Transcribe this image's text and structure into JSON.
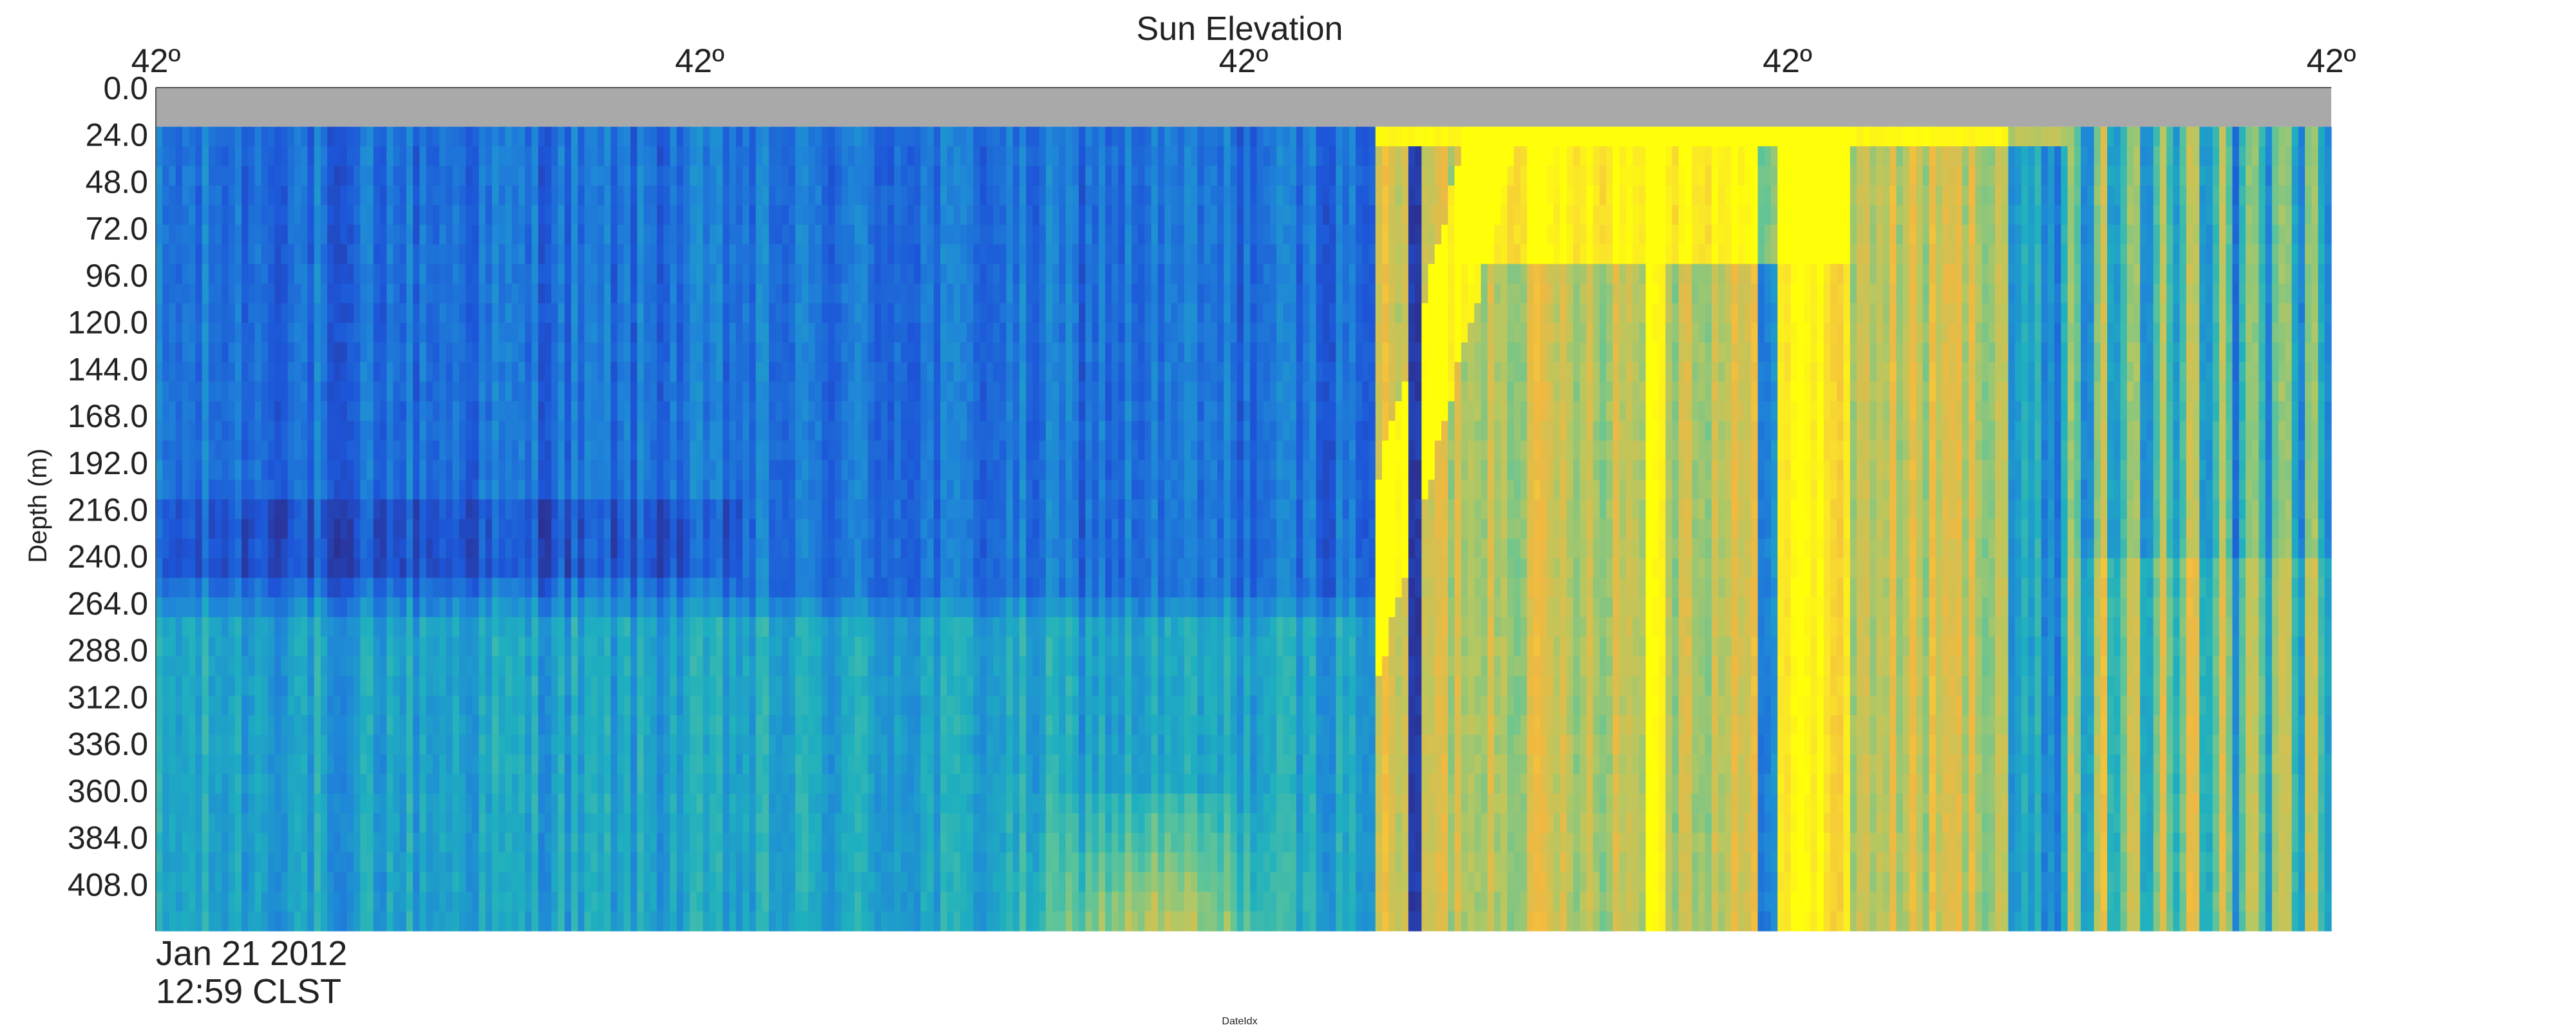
{
  "chart_data": {
    "type": "heatmap",
    "title": "Sun Elevation",
    "ylabel": "Depth (m)",
    "xlabel": "DateIdx",
    "top_axis_ticks": [
      "42º",
      "42º",
      "42º",
      "42º",
      "42º"
    ],
    "y_ticks": [
      "0.0",
      "24.0",
      "48.0",
      "72.0",
      "96.0",
      "120.0",
      "144.0",
      "168.0",
      "192.0",
      "216.0",
      "240.0",
      "264.0",
      "288.0",
      "312.0",
      "336.0",
      "360.0",
      "384.0",
      "408.0"
    ],
    "ylim": [
      0,
      432
    ],
    "y_inverted": true,
    "start_date_line1": "Jan 21 2012",
    "start_date_line2": "12:59 CLST",
    "blanked_depth_range": [
      0,
      20
    ],
    "grid": false,
    "legend": "none",
    "colormap": [
      "#2e2a86",
      "#1d55d8",
      "#1f86d8",
      "#1fb0bf",
      "#5cc49a",
      "#b8c760",
      "#f2b840",
      "#fae42a",
      "#ffff0a"
    ],
    "blank_color": "#a9a9a9"
  }
}
